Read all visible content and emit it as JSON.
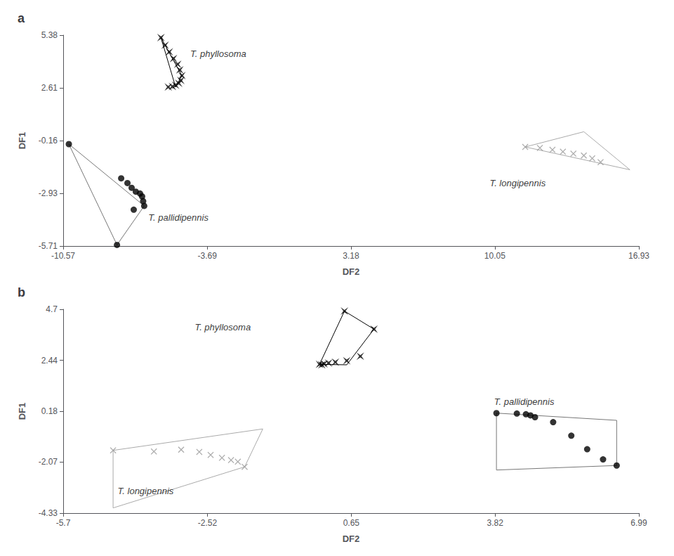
{
  "chart_data": [
    {
      "type": "scatter",
      "title": "a",
      "xlabel": "DF2",
      "ylabel": "DF1",
      "xlim": [
        -10.57,
        16.93
      ],
      "ylim": [
        -5.71,
        5.38
      ],
      "xticks": [
        -10.57,
        -3.69,
        3.18,
        10.05,
        16.93
      ],
      "yticks": [
        -5.71,
        -2.93,
        -0.16,
        2.61,
        5.38
      ],
      "grid": false,
      "series": [
        {
          "type": "line",
          "color": "#000000",
          "x": [
            -5.9,
            -4.9,
            -5.2,
            -5.9
          ],
          "y": [
            5.25,
            3.25,
            2.65,
            5.25
          ]
        },
        {
          "type": "scatter",
          "marker": "star4",
          "color": "#000000",
          "x": [
            -5.9,
            -5.7,
            -5.5,
            -5.3,
            -5.1,
            -5.0,
            -4.9,
            -4.95,
            -5.05,
            -5.2,
            -5.35,
            -5.55
          ],
          "y": [
            5.25,
            4.85,
            4.5,
            4.15,
            3.85,
            3.55,
            3.25,
            3.0,
            2.85,
            2.75,
            2.68,
            2.65
          ]
        },
        {
          "type": "line",
          "color": "#777777",
          "x": [
            -10.3,
            -6.7,
            -8.0,
            -10.3
          ],
          "y": [
            -0.35,
            -3.6,
            -5.65,
            -0.35
          ]
        },
        {
          "type": "scatter",
          "marker": "circle",
          "color": "#000000",
          "x": [
            -10.3,
            -7.8,
            -7.5,
            -7.3,
            -7.1,
            -6.9,
            -6.8,
            -6.75,
            -6.7,
            -7.2,
            -8.0
          ],
          "y": [
            -0.35,
            -2.15,
            -2.4,
            -2.65,
            -2.85,
            -2.95,
            -3.1,
            -3.35,
            -3.6,
            -3.8,
            -5.65
          ]
        },
        {
          "type": "line",
          "color": "#aaaaaa",
          "x": [
            11.5,
            14.3,
            16.5,
            11.5
          ],
          "y": [
            -0.5,
            0.3,
            -1.7,
            -0.5
          ]
        },
        {
          "type": "scatter",
          "marker": "x",
          "color": "#999999",
          "x": [
            11.5,
            12.2,
            12.8,
            13.3,
            13.8,
            14.3,
            14.7,
            15.1
          ],
          "y": [
            -0.5,
            -0.55,
            -0.65,
            -0.75,
            -0.85,
            -0.95,
            -1.1,
            -1.3
          ]
        }
      ],
      "annotations": [
        {
          "text": "T. phyllosoma",
          "x": -4.5,
          "y": 4.4
        },
        {
          "text": "T. pallidipennis",
          "x": -6.5,
          "y": -4.2
        },
        {
          "text": "T. longipennis",
          "x": 9.8,
          "y": -2.4
        }
      ]
    },
    {
      "type": "scatter",
      "title": "b",
      "xlabel": "DF2",
      "ylabel": "DF1",
      "xlim": [
        -5.7,
        6.99
      ],
      "ylim": [
        -4.33,
        4.7
      ],
      "xticks": [
        -5.7,
        -2.52,
        0.65,
        3.82,
        6.99
      ],
      "yticks": [
        -4.33,
        -2.07,
        0.18,
        2.44,
        4.7
      ],
      "grid": false,
      "series": [
        {
          "type": "line",
          "color": "#000000",
          "x": [
            0.5,
            1.15,
            0.55,
            -0.05,
            0.5
          ],
          "y": [
            4.62,
            3.82,
            2.24,
            2.26,
            4.62
          ]
        },
        {
          "type": "scatter",
          "marker": "star4",
          "color": "#000000",
          "x": [
            0.5,
            1.15,
            0.85,
            0.55,
            0.3,
            0.15,
            0.05,
            -0.05,
            0.0
          ],
          "y": [
            4.62,
            3.82,
            2.62,
            2.42,
            2.36,
            2.32,
            2.28,
            2.26,
            2.24
          ]
        },
        {
          "type": "line",
          "color": "#777777",
          "x": [
            3.85,
            6.5,
            6.5,
            3.85,
            3.85
          ],
          "y": [
            0.1,
            -0.22,
            -2.22,
            -2.42,
            0.1
          ]
        },
        {
          "type": "scatter",
          "marker": "circle",
          "color": "#000000",
          "x": [
            3.85,
            4.3,
            4.5,
            4.6,
            4.7,
            5.1,
            5.5,
            5.85,
            6.2,
            6.5
          ],
          "y": [
            0.1,
            0.08,
            0.05,
            0.0,
            -0.08,
            -0.3,
            -0.9,
            -1.5,
            -1.95,
            -2.22
          ]
        },
        {
          "type": "line",
          "color": "#aaaaaa",
          "x": [
            -4.6,
            -1.3,
            -1.7,
            -4.6,
            -4.6
          ],
          "y": [
            -1.55,
            -0.6,
            -2.28,
            -4.1,
            -1.55
          ]
        },
        {
          "type": "scatter",
          "marker": "x",
          "color": "#999999",
          "x": [
            -4.6,
            -3.7,
            -3.1,
            -2.7,
            -2.45,
            -2.2,
            -2.0,
            -1.85,
            -1.7
          ],
          "y": [
            -1.55,
            -1.6,
            -1.52,
            -1.62,
            -1.75,
            -1.88,
            -1.98,
            -2.05,
            -2.28
          ]
        }
      ],
      "annotations": [
        {
          "text": "T. phyllosoma",
          "x": -2.8,
          "y": 3.9
        },
        {
          "text": "T. pallidipennis",
          "x": 3.8,
          "y": 0.62
        },
        {
          "text": "T. longipennis",
          "x": -4.5,
          "y": -3.35
        }
      ]
    }
  ]
}
